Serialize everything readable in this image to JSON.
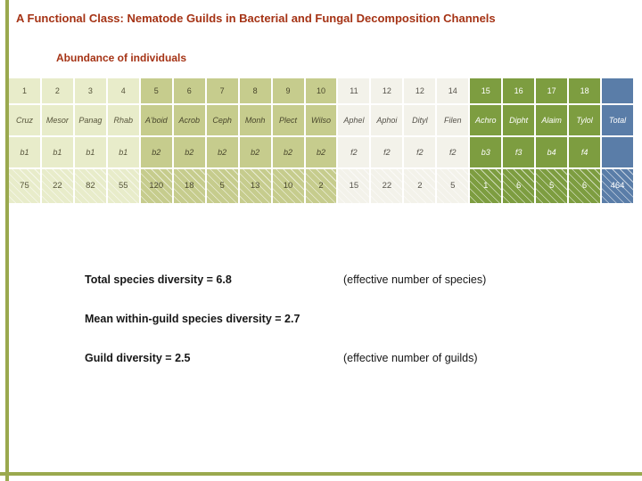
{
  "slide": {
    "title": "A Functional Class: Nematode Guilds in Bacterial and Fungal Decomposition Channels",
    "subtitle": "Abundance of individuals"
  },
  "table": {
    "columns": [
      {
        "num": "1",
        "name": "Cruz",
        "guild": "b1",
        "count": "75",
        "group": "g1"
      },
      {
        "num": "2",
        "name": "Mesor",
        "guild": "b1",
        "count": "22",
        "group": "g1"
      },
      {
        "num": "3",
        "name": "Panag",
        "guild": "b1",
        "count": "82",
        "group": "g1"
      },
      {
        "num": "4",
        "name": "Rhab",
        "guild": "b1",
        "count": "55",
        "group": "g1"
      },
      {
        "num": "5",
        "name": "A'boid",
        "guild": "b2",
        "count": "120",
        "group": "g2"
      },
      {
        "num": "6",
        "name": "Acrob",
        "guild": "b2",
        "count": "18",
        "group": "g2"
      },
      {
        "num": "7",
        "name": "Ceph",
        "guild": "b2",
        "count": "5",
        "group": "g2"
      },
      {
        "num": "8",
        "name": "Monh",
        "guild": "b2",
        "count": "13",
        "group": "g2"
      },
      {
        "num": "9",
        "name": "Plect",
        "guild": "b2",
        "count": "10",
        "group": "g2"
      },
      {
        "num": "10",
        "name": "Wilso",
        "guild": "b2",
        "count": "2",
        "group": "g2"
      },
      {
        "num": "11",
        "name": "Aphel",
        "guild": "f2",
        "count": "15",
        "group": "g3"
      },
      {
        "num": "12",
        "name": "Aphoi",
        "guild": "f2",
        "count": "22",
        "group": "g3"
      },
      {
        "num": "12",
        "name": "Dityl",
        "guild": "f2",
        "count": "2",
        "group": "g3"
      },
      {
        "num": "14",
        "name": "Filen",
        "guild": "f2",
        "count": "5",
        "group": "g3"
      },
      {
        "num": "15",
        "name": "Achro",
        "guild": "b3",
        "count": "1",
        "group": "g4"
      },
      {
        "num": "16",
        "name": "Dipht",
        "guild": "f3",
        "count": "6",
        "group": "g4"
      },
      {
        "num": "17",
        "name": "Alaim",
        "guild": "b4",
        "count": "5",
        "group": "g4"
      },
      {
        "num": "18",
        "name": "Tylol",
        "guild": "f4",
        "count": "6",
        "group": "g4"
      },
      {
        "num": "",
        "name": "Total",
        "guild": "",
        "count": "464",
        "group": "total"
      }
    ]
  },
  "stats": [
    {
      "label": "Total species diversity = 6.8",
      "note": "(effective number of species)"
    },
    {
      "label": "Mean within-guild species diversity = 2.7",
      "note": ""
    },
    {
      "label": "Guild diversity = 2.5",
      "note": "(effective number of guilds)"
    }
  ],
  "colors": {
    "title": "#a53315",
    "frame": "#9aa94e",
    "groups": {
      "g1": {
        "bg": "#e8ecca",
        "text": "#56543a"
      },
      "g2": {
        "bg": "#c6cc8d",
        "text": "#49472c"
      },
      "g3": {
        "bg": "#f3f2ea",
        "text": "#55524a"
      },
      "g4": {
        "bg": "#7d9d40",
        "text": "#ffffff"
      },
      "total": {
        "bg": "#5a7da8",
        "text": "#ffffff"
      }
    }
  }
}
